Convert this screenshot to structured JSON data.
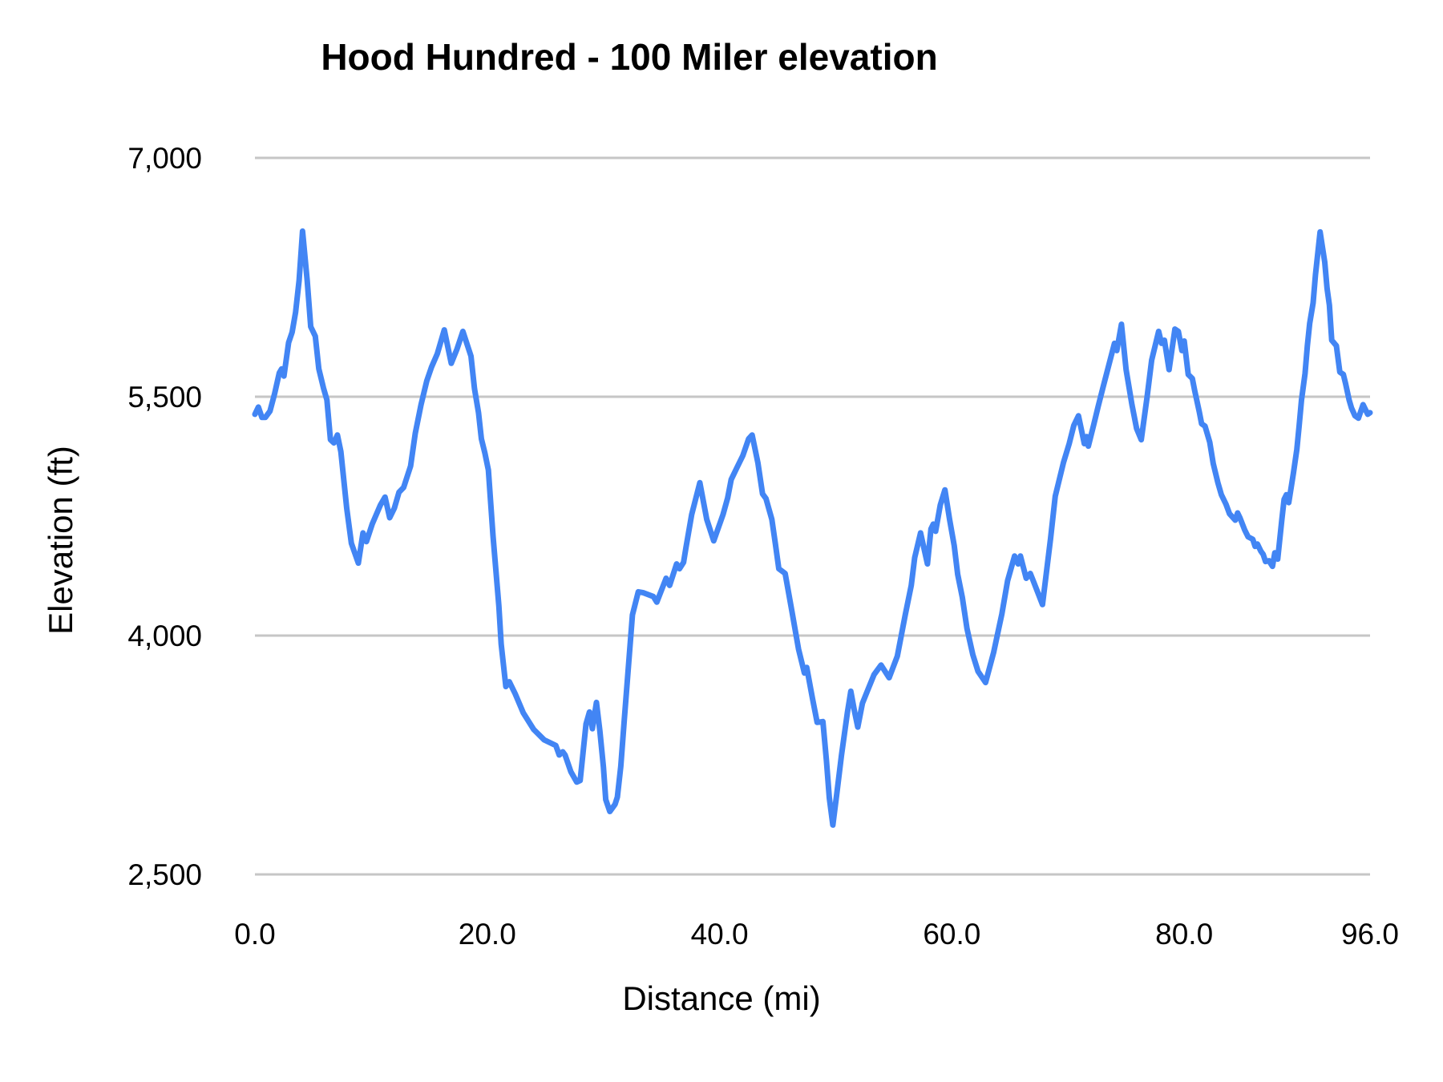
{
  "title": "Hood Hundred - 100 Miler elevation",
  "chart_data": {
    "type": "line",
    "title": "Hood Hundred - 100 Miler elevation",
    "xlabel": "Distance (mi)",
    "ylabel": "Elevation (ft)",
    "xlim": [
      0,
      96
    ],
    "ylim": [
      2500,
      7000
    ],
    "x_tick_values": [
      0,
      20,
      40,
      60,
      80,
      96
    ],
    "x_tick_labels": [
      "0.0",
      "20.0",
      "40.0",
      "60.0",
      "80.0",
      "96.0"
    ],
    "y_tick_values": [
      2500,
      4000,
      5500,
      7000
    ],
    "y_tick_labels": [
      "2,500",
      "4,000",
      "5,500",
      "7,000"
    ],
    "grid": "horizontal-only",
    "legend_position": "none",
    "line_color": "#4285f4",
    "gridline_color": "#c6c6c6",
    "text_color": "#000000",
    "background_color": "#ffffff",
    "series": [
      {
        "name": "elevation",
        "points": [
          [
            0,
            5390
          ],
          [
            0.3,
            5435
          ],
          [
            0.6,
            5370
          ],
          [
            0.9,
            5370
          ],
          [
            1.3,
            5410
          ],
          [
            1.7,
            5520
          ],
          [
            2.1,
            5650
          ],
          [
            2.3,
            5675
          ],
          [
            2.5,
            5630
          ],
          [
            2.9,
            5840
          ],
          [
            3.2,
            5905
          ],
          [
            3.5,
            6030
          ],
          [
            3.8,
            6230
          ],
          [
            4.1,
            6540
          ],
          [
            4.5,
            6230
          ],
          [
            4.8,
            5940
          ],
          [
            5.2,
            5880
          ],
          [
            5.5,
            5675
          ],
          [
            5.9,
            5555
          ],
          [
            6.2,
            5480
          ],
          [
            6.5,
            5230
          ],
          [
            6.8,
            5210
          ],
          [
            7.1,
            5260
          ],
          [
            7.4,
            5155
          ],
          [
            7.9,
            4800
          ],
          [
            8.3,
            4580
          ],
          [
            8.9,
            4455
          ],
          [
            9.3,
            4645
          ],
          [
            9.6,
            4590
          ],
          [
            10.1,
            4700
          ],
          [
            10.8,
            4820
          ],
          [
            11.2,
            4870
          ],
          [
            11.6,
            4740
          ],
          [
            12.0,
            4800
          ],
          [
            12.4,
            4900
          ],
          [
            12.8,
            4930
          ],
          [
            13.4,
            5065
          ],
          [
            13.8,
            5270
          ],
          [
            14.3,
            5450
          ],
          [
            14.8,
            5600
          ],
          [
            15.2,
            5685
          ],
          [
            15.7,
            5770
          ],
          [
            16.3,
            5920
          ],
          [
            16.9,
            5710
          ],
          [
            17.4,
            5800
          ],
          [
            17.9,
            5910
          ],
          [
            18.6,
            5755
          ],
          [
            18.9,
            5550
          ],
          [
            19.25,
            5400
          ],
          [
            19.5,
            5235
          ],
          [
            19.8,
            5145
          ],
          [
            20.1,
            5040
          ],
          [
            20.5,
            4625
          ],
          [
            21.0,
            4185
          ],
          [
            21.2,
            3945
          ],
          [
            21.6,
            3680
          ],
          [
            21.9,
            3710
          ],
          [
            22.4,
            3635
          ],
          [
            23.1,
            3515
          ],
          [
            24.0,
            3410
          ],
          [
            24.9,
            3345
          ],
          [
            25.9,
            3310
          ],
          [
            26.2,
            3250
          ],
          [
            26.5,
            3270
          ],
          [
            26.7,
            3250
          ],
          [
            27.2,
            3145
          ],
          [
            27.7,
            3080
          ],
          [
            28.0,
            3090
          ],
          [
            28.5,
            3445
          ],
          [
            28.8,
            3520
          ],
          [
            29.05,
            3415
          ],
          [
            29.4,
            3580
          ],
          [
            29.7,
            3400
          ],
          [
            30.0,
            3175
          ],
          [
            30.2,
            2970
          ],
          [
            30.55,
            2895
          ],
          [
            31.0,
            2940
          ],
          [
            31.2,
            2985
          ],
          [
            31.5,
            3180
          ],
          [
            31.8,
            3475
          ],
          [
            32.5,
            4130
          ],
          [
            33.0,
            4275
          ],
          [
            33.4,
            4270
          ],
          [
            34.3,
            4245
          ],
          [
            34.6,
            4210
          ],
          [
            35.4,
            4360
          ],
          [
            35.7,
            4315
          ],
          [
            36.3,
            4450
          ],
          [
            36.55,
            4420
          ],
          [
            36.9,
            4460
          ],
          [
            37.1,
            4550
          ],
          [
            37.6,
            4760
          ],
          [
            38.3,
            4960
          ],
          [
            38.9,
            4730
          ],
          [
            39.5,
            4595
          ],
          [
            40.3,
            4760
          ],
          [
            40.7,
            4865
          ],
          [
            41.0,
            4980
          ],
          [
            41.5,
            5055
          ],
          [
            42.0,
            5130
          ],
          [
            42.5,
            5235
          ],
          [
            42.8,
            5260
          ],
          [
            43.3,
            5085
          ],
          [
            43.7,
            4890
          ],
          [
            44.0,
            4860
          ],
          [
            44.5,
            4730
          ],
          [
            44.8,
            4580
          ],
          [
            45.1,
            4420
          ],
          [
            45.65,
            4390
          ],
          [
            46.2,
            4165
          ],
          [
            46.8,
            3915
          ],
          [
            47.15,
            3810
          ],
          [
            47.3,
            3765
          ],
          [
            47.5,
            3800
          ],
          [
            48.0,
            3605
          ],
          [
            48.4,
            3455
          ],
          [
            48.9,
            3460
          ],
          [
            49.2,
            3215
          ],
          [
            49.45,
            2980
          ],
          [
            49.75,
            2810
          ],
          [
            50.1,
            3010
          ],
          [
            50.5,
            3250
          ],
          [
            51.0,
            3515
          ],
          [
            51.3,
            3650
          ],
          [
            51.6,
            3530
          ],
          [
            51.9,
            3425
          ],
          [
            52.3,
            3575
          ],
          [
            52.8,
            3665
          ],
          [
            53.3,
            3755
          ],
          [
            53.9,
            3815
          ],
          [
            54.6,
            3735
          ],
          [
            55.3,
            3870
          ],
          [
            56.0,
            4135
          ],
          [
            56.5,
            4315
          ],
          [
            56.8,
            4490
          ],
          [
            57.3,
            4645
          ],
          [
            57.9,
            4450
          ],
          [
            58.2,
            4670
          ],
          [
            58.4,
            4700
          ],
          [
            58.6,
            4655
          ],
          [
            59.0,
            4820
          ],
          [
            59.4,
            4915
          ],
          [
            59.8,
            4730
          ],
          [
            60.2,
            4565
          ],
          [
            60.5,
            4385
          ],
          [
            60.9,
            4240
          ],
          [
            61.3,
            4045
          ],
          [
            61.8,
            3880
          ],
          [
            62.25,
            3775
          ],
          [
            62.9,
            3705
          ],
          [
            63.6,
            3895
          ],
          [
            64.3,
            4135
          ],
          [
            64.8,
            4345
          ],
          [
            65.4,
            4500
          ],
          [
            65.7,
            4450
          ],
          [
            65.9,
            4500
          ],
          [
            66.4,
            4360
          ],
          [
            66.75,
            4390
          ],
          [
            67.0,
            4345
          ],
          [
            67.8,
            4195
          ],
          [
            68.5,
            4610
          ],
          [
            68.9,
            4875
          ],
          [
            69.6,
            5085
          ],
          [
            70.1,
            5205
          ],
          [
            70.5,
            5320
          ],
          [
            70.9,
            5380
          ],
          [
            71.4,
            5205
          ],
          [
            71.6,
            5250
          ],
          [
            71.75,
            5190
          ],
          [
            72.2,
            5320
          ],
          [
            72.6,
            5440
          ],
          [
            73.0,
            5555
          ],
          [
            74.0,
            5835
          ],
          [
            74.2,
            5790
          ],
          [
            74.6,
            5955
          ],
          [
            75.0,
            5670
          ],
          [
            75.5,
            5450
          ],
          [
            75.9,
            5300
          ],
          [
            76.3,
            5230
          ],
          [
            76.8,
            5495
          ],
          [
            77.2,
            5730
          ],
          [
            77.8,
            5910
          ],
          [
            78.05,
            5835
          ],
          [
            78.3,
            5855
          ],
          [
            78.7,
            5670
          ],
          [
            79.2,
            5925
          ],
          [
            79.5,
            5910
          ],
          [
            79.8,
            5790
          ],
          [
            80.0,
            5850
          ],
          [
            80.35,
            5640
          ],
          [
            80.7,
            5615
          ],
          [
            80.9,
            5540
          ],
          [
            81.3,
            5405
          ],
          [
            81.5,
            5330
          ],
          [
            81.8,
            5315
          ],
          [
            82.2,
            5215
          ],
          [
            82.5,
            5080
          ],
          [
            82.9,
            4960
          ],
          [
            83.2,
            4885
          ],
          [
            83.6,
            4825
          ],
          [
            83.9,
            4765
          ],
          [
            84.4,
            4725
          ],
          [
            84.6,
            4770
          ],
          [
            84.8,
            4740
          ],
          [
            85.2,
            4665
          ],
          [
            85.5,
            4620
          ],
          [
            85.9,
            4605
          ],
          [
            86.1,
            4560
          ],
          [
            86.3,
            4575
          ],
          [
            86.6,
            4530
          ],
          [
            86.8,
            4510
          ],
          [
            87.0,
            4465
          ],
          [
            87.3,
            4470
          ],
          [
            87.6,
            4435
          ],
          [
            87.8,
            4520
          ],
          [
            88.05,
            4480
          ],
          [
            88.4,
            4725
          ],
          [
            88.6,
            4855
          ],
          [
            88.8,
            4885
          ],
          [
            89.0,
            4835
          ],
          [
            89.4,
            5020
          ],
          [
            89.7,
            5170
          ],
          [
            89.9,
            5320
          ],
          [
            90.1,
            5480
          ],
          [
            90.4,
            5645
          ],
          [
            90.6,
            5820
          ],
          [
            90.8,
            5960
          ],
          [
            91.1,
            6090
          ],
          [
            91.3,
            6265
          ],
          [
            91.7,
            6535
          ],
          [
            92.1,
            6345
          ],
          [
            92.3,
            6180
          ],
          [
            92.5,
            6075
          ],
          [
            92.7,
            5855
          ],
          [
            93.1,
            5820
          ],
          [
            93.4,
            5655
          ],
          [
            93.7,
            5640
          ],
          [
            93.9,
            5580
          ],
          [
            94.2,
            5480
          ],
          [
            94.4,
            5430
          ],
          [
            94.7,
            5380
          ],
          [
            95.0,
            5365
          ],
          [
            95.4,
            5450
          ],
          [
            95.8,
            5390
          ],
          [
            96.0,
            5400
          ]
        ]
      }
    ]
  }
}
